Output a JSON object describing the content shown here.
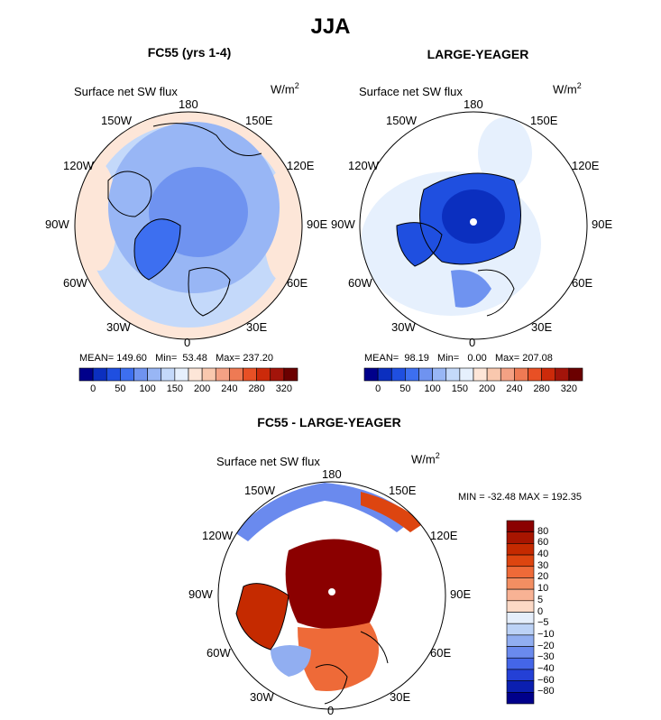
{
  "title": "JJA",
  "panels": [
    {
      "title": "FC55 (yrs 1-4)",
      "variable": "Surface net SW flux",
      "units_base": "W/m",
      "units_exp": "2",
      "stats": {
        "mean": "149.60",
        "min": "53.48",
        "max": "237.20"
      },
      "colorbar_ticks": [
        "0",
        "50",
        "100",
        "150",
        "200",
        "240",
        "280",
        "320"
      ]
    },
    {
      "title": "LARGE-YEAGER",
      "variable": "Surface net SW flux",
      "units_base": "W/m",
      "units_exp": "2",
      "stats": {
        "mean": "98.19",
        "min": "0.00",
        "max": "207.08"
      },
      "colorbar_ticks": [
        "0",
        "50",
        "100",
        "150",
        "200",
        "240",
        "280",
        "320"
      ]
    },
    {
      "title": "FC55 - LARGE-YEAGER",
      "variable": "Surface net SW flux",
      "units_base": "W/m",
      "units_exp": "2",
      "stats_text": "MIN = -32.48 MAX = 192.35",
      "colorbar_ticks": [
        "80",
        "60",
        "40",
        "30",
        "20",
        "10",
        "5",
        "0",
        "−5",
        "−10",
        "−20",
        "−30",
        "−40",
        "−60",
        "−80"
      ]
    }
  ],
  "labels": {
    "mean": "MEAN=",
    "min": "Min=",
    "max": "Max="
  },
  "longitudes": [
    "180",
    "150E",
    "120E",
    "90E",
    "60E",
    "30E",
    "0",
    "30W",
    "60W",
    "90W",
    "120W",
    "150W"
  ],
  "colors": {
    "abs_scale": [
      "#00008b",
      "#0b2fbf",
      "#1f4fe0",
      "#3d6ff0",
      "#6f93f0",
      "#98b6f5",
      "#c4d9fa",
      "#e6f0fd",
      "#fde6d8",
      "#f9c8ae",
      "#f4a184",
      "#ee7a54",
      "#e85025",
      "#cc2a0a",
      "#a2140a",
      "#6b0000"
    ],
    "diff_scale": [
      "#8b0000",
      "#a81500",
      "#c52a00",
      "#dd4510",
      "#ee6a38",
      "#f38e62",
      "#f8b294",
      "#fcd9c6",
      "#e5eefb",
      "#bcd2f6",
      "#91aef1",
      "#6a8aee",
      "#4466e8",
      "#2440d6",
      "#0b1fb0",
      "#00008b"
    ]
  }
}
